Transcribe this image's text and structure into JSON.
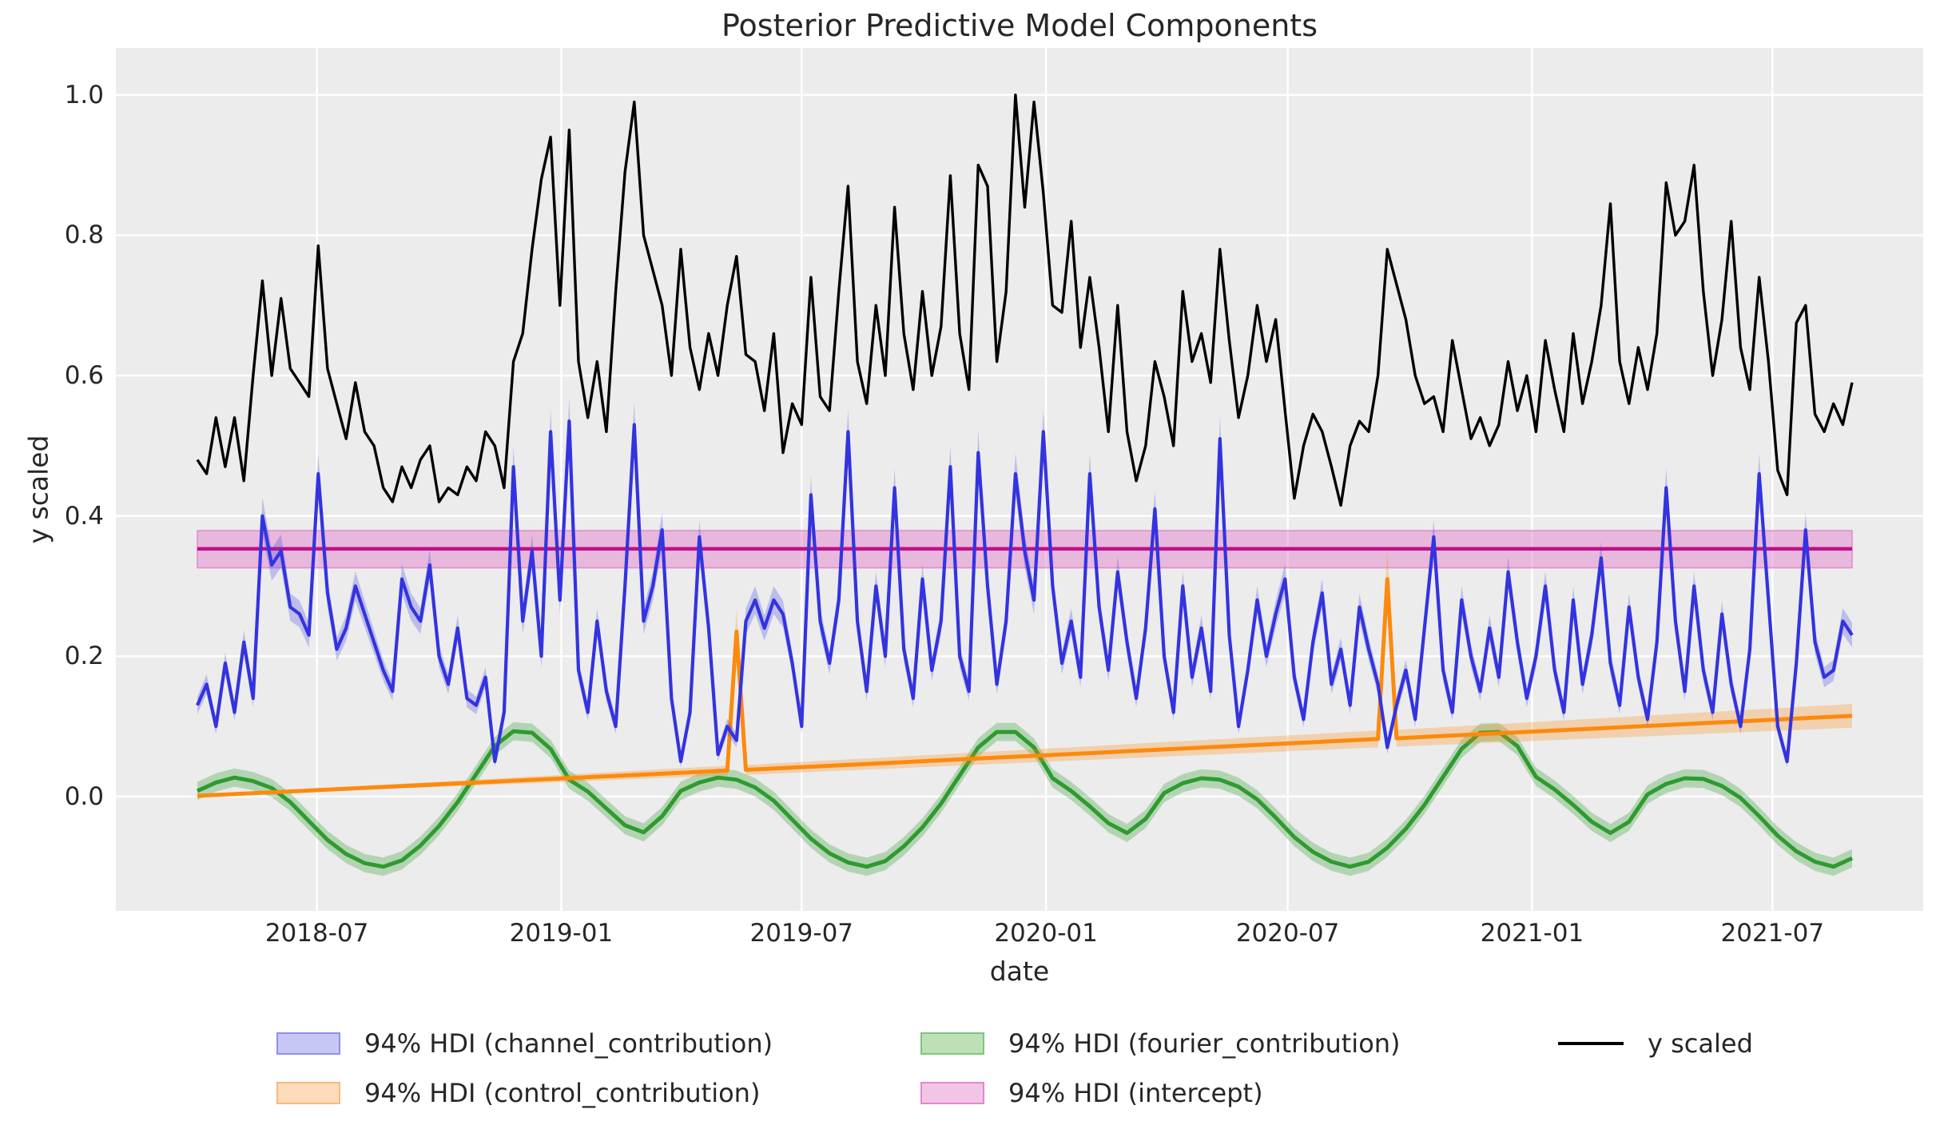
{
  "title": "Posterior Predictive Model Components",
  "axes": {
    "xlabel": "date",
    "ylabel": "y scaled",
    "x_ticks": [
      {
        "label": "2018-07",
        "week": 12.857
      },
      {
        "label": "2019-01",
        "week": 39.143
      },
      {
        "label": "2019-07",
        "week": 65.0
      },
      {
        "label": "2020-01",
        "week": 91.286
      },
      {
        "label": "2020-07",
        "week": 117.286
      },
      {
        "label": "2021-01",
        "week": 143.571
      },
      {
        "label": "2021-07",
        "week": 169.429
      }
    ],
    "y_ticks": [
      {
        "label": "0.0",
        "value": 0.0
      },
      {
        "label": "0.2",
        "value": 0.2
      },
      {
        "label": "0.4",
        "value": 0.4
      },
      {
        "label": "0.6",
        "value": 0.6
      },
      {
        "label": "0.8",
        "value": 0.8
      },
      {
        "label": "1.0",
        "value": 1.0
      }
    ],
    "ylim": [
      -0.163,
      1.067
    ],
    "grid": "white-on-gray"
  },
  "colors": {
    "figure_bg": "#ffffff",
    "axes_bg": "#ececec",
    "grid": "#ffffff",
    "y_scaled_line": "#000000",
    "channel_line": "#3333e0",
    "channel_band": "rgba(70,70,225,0.28)",
    "control_line": "#fc8a0d",
    "control_band": "rgba(252,138,13,0.28)",
    "fourier_line": "#2e9b2e",
    "fourier_band": "rgba(46,155,46,0.30)",
    "intercept_line": "#be0f8c",
    "intercept_band": "rgba(224,112,198,0.42)"
  },
  "legend": {
    "items": [
      {
        "label": "94% HDI (channel_contribution)",
        "swatch": "patch",
        "fill": "#c7c7f5",
        "edge": "#9090ea",
        "col": 0,
        "row": 0
      },
      {
        "label": "94% HDI (control_contribution)",
        "swatch": "patch",
        "fill": "#fcdcba",
        "edge": "#f7b97f",
        "col": 0,
        "row": 1
      },
      {
        "label": "94% HDI (fourier_contribution)",
        "swatch": "patch",
        "fill": "#bfe0b6",
        "edge": "#7fc57f",
        "col": 1,
        "row": 0
      },
      {
        "label": "94% HDI (intercept)",
        "swatch": "patch",
        "fill": "#f2c4e5",
        "edge": "#e089cf",
        "col": 1,
        "row": 1
      },
      {
        "label": "y scaled",
        "swatch": "line",
        "stroke": "#000000",
        "col": 2,
        "row": 0
      }
    ]
  },
  "chart_data": {
    "type": "line",
    "title": "Posterior Predictive Model Components",
    "xlabel": "date",
    "ylabel": "y scaled",
    "x_unit": "weekly observations, week index from 2018-04-02 to 2021-08-30",
    "date_start": "2018-04-02",
    "date_end": "2021-08-30",
    "n_points": 179,
    "ylim": [
      -0.163,
      1.067
    ],
    "legend_position": "below axes, 3 columns",
    "series": [
      {
        "name": "y scaled",
        "style": "black noisy weekly line, range ~0.41 to 1.0, peaks Nov-Feb, lows Aug-Sep, max 1.0 in Dec 2019",
        "values": [
          0.48,
          0.46,
          0.54,
          0.47,
          0.54,
          0.45,
          0.6,
          0.735,
          0.6,
          0.71,
          0.61,
          0.59,
          0.57,
          0.785,
          0.61,
          0.56,
          0.51,
          0.59,
          0.52,
          0.5,
          0.44,
          0.42,
          0.47,
          0.44,
          0.48,
          0.5,
          0.42,
          0.44,
          0.43,
          0.47,
          0.45,
          0.52,
          0.5,
          0.44,
          0.62,
          0.66,
          0.78,
          0.88,
          0.94,
          0.7,
          0.95,
          0.62,
          0.54,
          0.62,
          0.52,
          0.72,
          0.89,
          0.99,
          0.8,
          0.75,
          0.7,
          0.6,
          0.78,
          0.64,
          0.58,
          0.66,
          0.6,
          0.7,
          0.77,
          0.63,
          0.62,
          0.55,
          0.66,
          0.49,
          0.56,
          0.53,
          0.74,
          0.57,
          0.55,
          0.72,
          0.87,
          0.62,
          0.56,
          0.7,
          0.6,
          0.84,
          0.66,
          0.58,
          0.72,
          0.6,
          0.67,
          0.885,
          0.66,
          0.58,
          0.9,
          0.87,
          0.62,
          0.72,
          1.0,
          0.84,
          0.99,
          0.86,
          0.7,
          0.69,
          0.82,
          0.64,
          0.74,
          0.64,
          0.52,
          0.7,
          0.52,
          0.45,
          0.5,
          0.62,
          0.57,
          0.5,
          0.72,
          0.62,
          0.66,
          0.59,
          0.78,
          0.65,
          0.54,
          0.6,
          0.7,
          0.62,
          0.68,
          0.55,
          0.425,
          0.5,
          0.545,
          0.52,
          0.47,
          0.415,
          0.5,
          0.535,
          0.52,
          0.6,
          0.78,
          0.73,
          0.68,
          0.6,
          0.56,
          0.57,
          0.52,
          0.65,
          0.58,
          0.51,
          0.54,
          0.5,
          0.53,
          0.62,
          0.55,
          0.6,
          0.52,
          0.65,
          0.58,
          0.52,
          0.66,
          0.56,
          0.62,
          0.7,
          0.845,
          0.62,
          0.56,
          0.64,
          0.58,
          0.66,
          0.875,
          0.8,
          0.82,
          0.9,
          0.72,
          0.6,
          0.68,
          0.82,
          0.64,
          0.58,
          0.74,
          0.62,
          0.465,
          0.43,
          0.675,
          0.7,
          0.545,
          0.52,
          0.56,
          0.53,
          0.59
        ]
      },
      {
        "name": "channel_contribution (posterior mean with 94% HDI band)",
        "style": "blue spiky weekly line, range ~0.05-0.53",
        "hdi_halfwidth_base": 0.006,
        "hdi_halfwidth_scale": 0.05,
        "values": [
          0.13,
          0.16,
          0.1,
          0.19,
          0.12,
          0.22,
          0.14,
          0.4,
          0.33,
          0.35,
          0.27,
          0.26,
          0.23,
          0.46,
          0.29,
          0.21,
          0.24,
          0.3,
          0.26,
          0.22,
          0.18,
          0.15,
          0.31,
          0.27,
          0.25,
          0.33,
          0.2,
          0.16,
          0.24,
          0.14,
          0.13,
          0.17,
          0.05,
          0.12,
          0.47,
          0.25,
          0.35,
          0.2,
          0.52,
          0.28,
          0.535,
          0.18,
          0.12,
          0.25,
          0.15,
          0.1,
          0.3,
          0.53,
          0.25,
          0.3,
          0.38,
          0.14,
          0.05,
          0.12,
          0.37,
          0.24,
          0.06,
          0.1,
          0.08,
          0.25,
          0.28,
          0.24,
          0.28,
          0.26,
          0.19,
          0.1,
          0.43,
          0.25,
          0.19,
          0.28,
          0.52,
          0.25,
          0.15,
          0.3,
          0.2,
          0.44,
          0.21,
          0.14,
          0.31,
          0.18,
          0.25,
          0.47,
          0.2,
          0.15,
          0.49,
          0.3,
          0.16,
          0.25,
          0.46,
          0.35,
          0.28,
          0.52,
          0.3,
          0.19,
          0.25,
          0.17,
          0.46,
          0.27,
          0.18,
          0.32,
          0.22,
          0.14,
          0.24,
          0.41,
          0.2,
          0.12,
          0.3,
          0.17,
          0.24,
          0.15,
          0.51,
          0.23,
          0.1,
          0.18,
          0.28,
          0.2,
          0.26,
          0.31,
          0.17,
          0.11,
          0.22,
          0.29,
          0.16,
          0.21,
          0.13,
          0.27,
          0.21,
          0.16,
          0.07,
          0.13,
          0.18,
          0.11,
          0.24,
          0.37,
          0.18,
          0.12,
          0.28,
          0.2,
          0.15,
          0.24,
          0.17,
          0.32,
          0.22,
          0.14,
          0.2,
          0.3,
          0.18,
          0.12,
          0.28,
          0.16,
          0.23,
          0.34,
          0.19,
          0.13,
          0.27,
          0.17,
          0.11,
          0.22,
          0.44,
          0.25,
          0.15,
          0.3,
          0.18,
          0.12,
          0.26,
          0.16,
          0.1,
          0.21,
          0.46,
          0.28,
          0.1,
          0.05,
          0.19,
          0.38,
          0.22,
          0.17,
          0.18,
          0.25,
          0.23
        ]
      },
      {
        "name": "control_contribution (posterior mean with 94% HDI band)",
        "style": "orange slowly rising trend 0 to ~0.115 with one-week event spikes at 2019-05-13 and 2020-09-14",
        "breakpoint_weeks": [
          0,
          57,
          58,
          59,
          127,
          128,
          129,
          178
        ],
        "values": [
          0.001,
          0.037,
          0.235,
          0.038,
          0.082,
          0.31,
          0.083,
          0.115
        ],
        "hdi_lo": [
          0.0,
          0.03,
          0.2,
          0.031,
          0.07,
          0.265,
          0.071,
          0.098
        ],
        "hdi_hi": [
          0.002,
          0.044,
          0.268,
          0.045,
          0.094,
          0.356,
          0.095,
          0.132
        ]
      },
      {
        "name": "fourier_contribution (posterior mean with 94% HDI band)",
        "style": "green smooth yearly seasonality, peak ~+0.095 mid-Nov, trough ~-0.10 mid-Aug, secondary dip ~-0.05 late Feb",
        "week_step": 2,
        "hdi_halfwidth": 0.013,
        "values": [
          0.008,
          0.02,
          0.027,
          0.022,
          0.012,
          -0.008,
          -0.035,
          -0.062,
          -0.082,
          -0.095,
          -0.1,
          -0.091,
          -0.07,
          -0.042,
          -0.008,
          0.032,
          0.072,
          0.093,
          0.091,
          0.068,
          0.024,
          0.007,
          -0.017,
          -0.041,
          -0.051,
          -0.028,
          0.008,
          0.02,
          0.027,
          0.024,
          0.013,
          -0.006,
          -0.033,
          -0.06,
          -0.081,
          -0.094,
          -0.1,
          -0.092,
          -0.071,
          -0.044,
          -0.01,
          0.03,
          0.07,
          0.092,
          0.092,
          0.07,
          0.026,
          0.008,
          -0.014,
          -0.038,
          -0.052,
          -0.032,
          0.005,
          0.019,
          0.026,
          0.024,
          0.014,
          -0.004,
          -0.03,
          -0.058,
          -0.079,
          -0.093,
          -0.1,
          -0.093,
          -0.073,
          -0.046,
          -0.012,
          0.028,
          0.068,
          0.091,
          0.092,
          0.072,
          0.028,
          0.01,
          -0.012,
          -0.036,
          -0.052,
          -0.036,
          0.003,
          0.018,
          0.026,
          0.025,
          0.015,
          -0.002,
          -0.028,
          -0.056,
          -0.078,
          -0.093,
          -0.1,
          -0.088
        ]
      },
      {
        "name": "intercept (posterior mean with 94% HDI band)",
        "style": "flat magenta line with pink band across full data range",
        "mean": 0.353,
        "hdi": [
          0.326,
          0.379
        ]
      }
    ]
  }
}
